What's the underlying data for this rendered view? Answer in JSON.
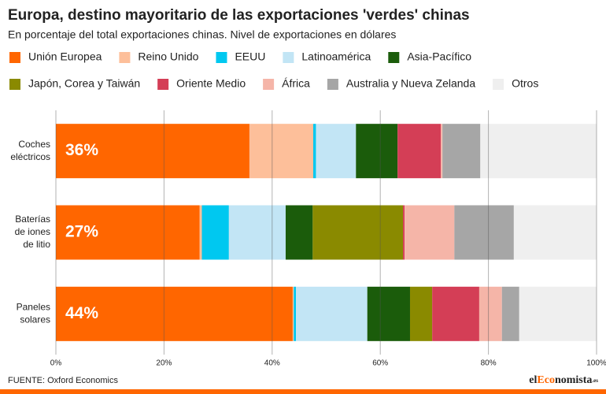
{
  "chart_data": {
    "type": "stacked_barh",
    "title": "Europa, destino mayoritario de las exportaciones 'verdes' chinas",
    "subtitle": "En porcentaje del total exportaciones chinas. Nivel de exportaciones en dólares",
    "categories": [
      [
        "Coches",
        "eléctricos"
      ],
      [
        "Baterías",
        "de iones",
        "de litio"
      ],
      [
        "Paneles",
        "solares"
      ]
    ],
    "series": [
      {
        "name": "Unión Europea",
        "color": "#ff6600",
        "values": [
          35.8,
          26.6,
          43.8
        ],
        "value_labels": [
          "36%",
          "27%",
          "44%"
        ]
      },
      {
        "name": "Reino Unido",
        "color": "#fdbf9a",
        "values": [
          11.8,
          0.4,
          0.2
        ]
      },
      {
        "name": "EEUU",
        "color": "#00c8f0",
        "values": [
          0.5,
          5.0,
          0.4
        ]
      },
      {
        "name": "Latinoamérica",
        "color": "#c2e5f5",
        "values": [
          7.4,
          10.5,
          13.2
        ]
      },
      {
        "name": "Asia-Pacífico",
        "color": "#1b5c0b",
        "values": [
          7.7,
          5.0,
          7.9
        ]
      },
      {
        "name": "Japón, Corea y Taiwán",
        "color": "#8a8a00",
        "values": [
          0.0,
          16.7,
          4.1
        ]
      },
      {
        "name": "Oriente Medio",
        "color": "#d43e56",
        "values": [
          8.0,
          0.3,
          8.7
        ]
      },
      {
        "name": "África",
        "color": "#f5b5a8",
        "values": [
          0.3,
          9.2,
          4.2
        ]
      },
      {
        "name": "Australia y Nueva Zelanda",
        "color": "#a6a6a6",
        "values": [
          7.0,
          11.0,
          3.2
        ]
      },
      {
        "name": "Otros",
        "color": "#efefef",
        "values": [
          21.5,
          15.3,
          14.3
        ]
      }
    ],
    "xlim": [
      0,
      100
    ],
    "xticks": [
      {
        "value": 0,
        "label": "0%"
      },
      {
        "value": 20,
        "label": "20%"
      },
      {
        "value": 40,
        "label": "40%"
      },
      {
        "value": 60,
        "label": "60%"
      },
      {
        "value": 80,
        "label": "80%"
      },
      {
        "value": 100,
        "label": "100%"
      }
    ],
    "grid": true,
    "source": "FUENTE: Oxford Economics",
    "logo": [
      "el",
      "Eco",
      "nomista",
      ".es"
    ]
  }
}
